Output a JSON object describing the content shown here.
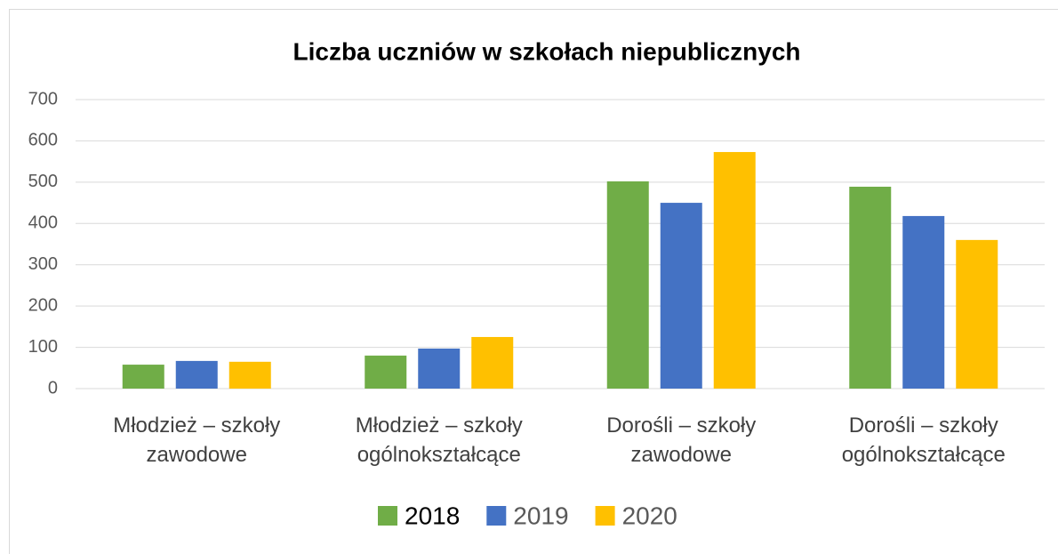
{
  "chart_data": {
    "type": "bar",
    "title": "Liczba uczniów w szkołach niepublicznych",
    "categories": [
      "Młodzież – szkoły zawodowe",
      "Młodzież – szkoły ogólnokształcące",
      "Dorośli – szkoły zawodowe",
      "Dorośli – szkoły ogólnokształcące"
    ],
    "series": [
      {
        "name": "2018",
        "color": "#70ad47",
        "values": [
          58,
          80,
          502,
          489
        ]
      },
      {
        "name": "2019",
        "color": "#4472c4",
        "values": [
          67,
          97,
          450,
          418
        ]
      },
      {
        "name": "2020",
        "color": "#ffc000",
        "values": [
          65,
          125,
          573,
          360
        ]
      }
    ],
    "ylim": [
      0,
      700
    ],
    "yticks": [
      0,
      100,
      200,
      300,
      400,
      500,
      600,
      700
    ],
    "grid": true,
    "legend": "bottom"
  }
}
